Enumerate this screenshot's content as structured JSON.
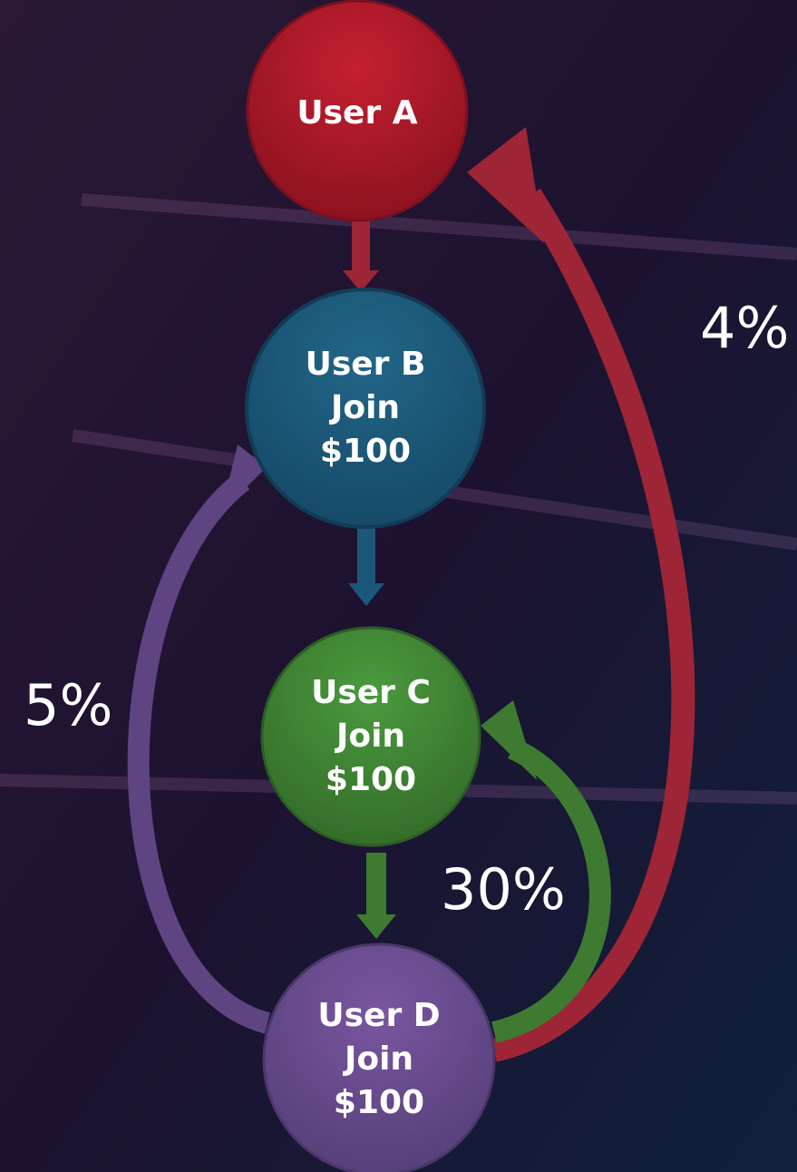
{
  "nodes": [
    {
      "lines": [
        "User A"
      ]
    },
    {
      "lines": [
        "User B",
        "Join",
        "$100"
      ]
    },
    {
      "lines": [
        "User C",
        "Join",
        "$100"
      ]
    },
    {
      "lines": [
        "User D",
        "Join",
        "$100"
      ]
    }
  ],
  "edges": [
    {
      "label": "4%"
    },
    {
      "label": "5%"
    },
    {
      "label": "30%"
    }
  ]
}
